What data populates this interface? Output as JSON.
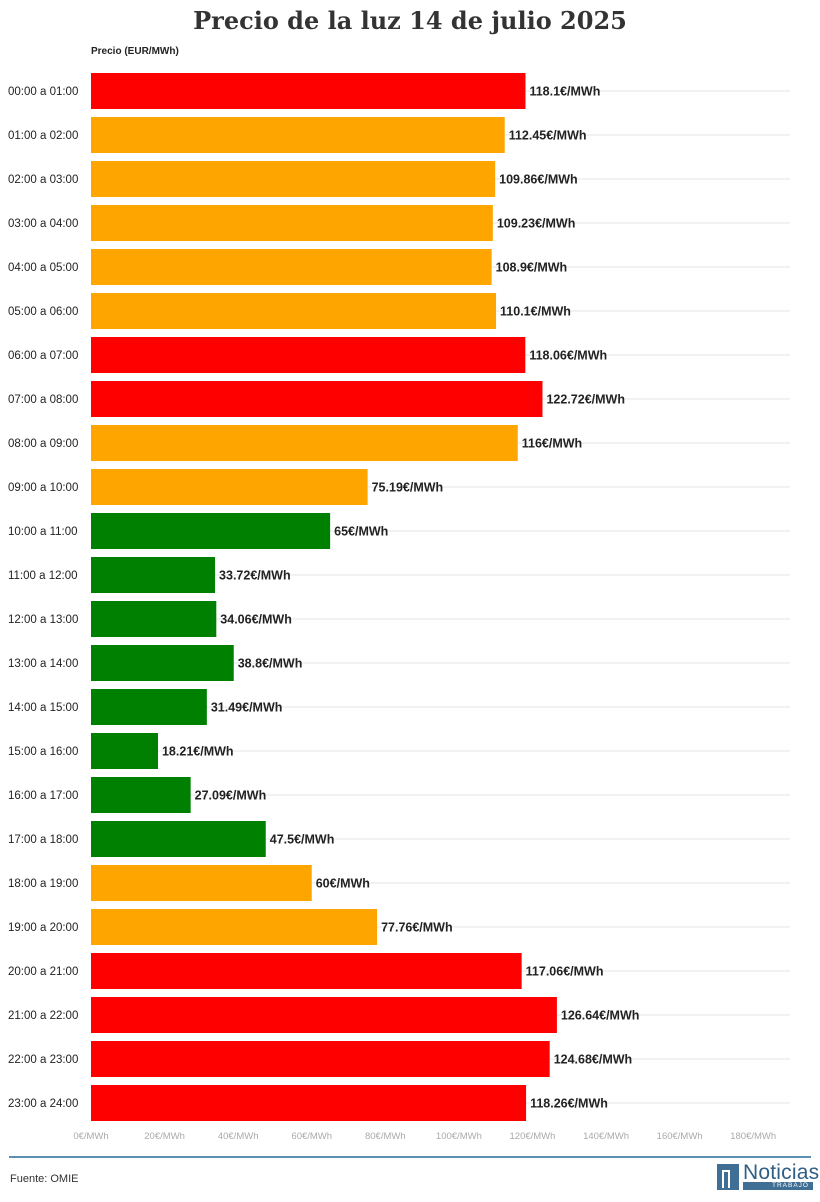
{
  "title": "Precio de la luz 14 de julio 2025",
  "y_caption": "Precio (EUR/MWh)",
  "source": "Fuente: OMIE",
  "logo": {
    "word": "Noticias",
    "sub": "TRABAJO"
  },
  "colors": {
    "high": "#ff0000",
    "mid": "#ffa500",
    "low": "#008000",
    "grid": "#e6e6e6",
    "accent": "#3f6f95"
  },
  "chart_data": {
    "type": "bar",
    "orientation": "horizontal",
    "title": "Precio de la luz 14 de julio 2025",
    "xlabel": "",
    "ylabel": "Precio (EUR/MWh)",
    "xlim": [
      0,
      190
    ],
    "grid": true,
    "x_ticks": [
      0,
      20,
      40,
      60,
      80,
      100,
      120,
      140,
      160,
      180
    ],
    "x_tick_labels": [
      "0€/MWh",
      "20€/MWh",
      "40€/MWh",
      "60€/MWh",
      "80€/MWh",
      "100€/MWh",
      "120€/MWh",
      "140€/MWh",
      "160€/MWh",
      "180€/MWh"
    ],
    "categories": [
      "00:00 a 01:00",
      "01:00 a 02:00",
      "02:00 a 03:00",
      "03:00 a 04:00",
      "04:00 a 05:00",
      "05:00 a 06:00",
      "06:00 a 07:00",
      "07:00 a 08:00",
      "08:00 a 09:00",
      "09:00 a 10:00",
      "10:00 a 11:00",
      "11:00 a 12:00",
      "12:00 a 13:00",
      "13:00 a 14:00",
      "14:00 a 15:00",
      "15:00 a 16:00",
      "16:00 a 17:00",
      "17:00 a 18:00",
      "18:00 a 19:00",
      "19:00 a 20:00",
      "20:00 a 21:00",
      "21:00 a 22:00",
      "22:00 a 23:00",
      "23:00 a 24:00"
    ],
    "values": [
      118.1,
      112.45,
      109.86,
      109.23,
      108.9,
      110.1,
      118.06,
      122.72,
      116,
      75.19,
      65,
      33.72,
      34.06,
      38.8,
      31.49,
      18.21,
      27.09,
      47.5,
      60,
      77.76,
      117.06,
      126.64,
      124.68,
      118.26
    ],
    "value_labels": [
      "118.1€/MWh",
      "112.45€/MWh",
      "109.86€/MWh",
      "109.23€/MWh",
      "108.9€/MWh",
      "110.1€/MWh",
      "118.06€/MWh",
      "122.72€/MWh",
      "116€/MWh",
      "75.19€/MWh",
      "65€/MWh",
      "33.72€/MWh",
      "34.06€/MWh",
      "38.8€/MWh",
      "31.49€/MWh",
      "18.21€/MWh",
      "27.09€/MWh",
      "47.5€/MWh",
      "60€/MWh",
      "77.76€/MWh",
      "117.06€/MWh",
      "126.64€/MWh",
      "124.68€/MWh",
      "118.26€/MWh"
    ],
    "bar_colors": [
      "#ff0000",
      "#ffa500",
      "#ffa500",
      "#ffa500",
      "#ffa500",
      "#ffa500",
      "#ff0000",
      "#ff0000",
      "#ffa500",
      "#ffa500",
      "#008000",
      "#008000",
      "#008000",
      "#008000",
      "#008000",
      "#008000",
      "#008000",
      "#008000",
      "#ffa500",
      "#ffa500",
      "#ff0000",
      "#ff0000",
      "#ff0000",
      "#ff0000"
    ]
  }
}
